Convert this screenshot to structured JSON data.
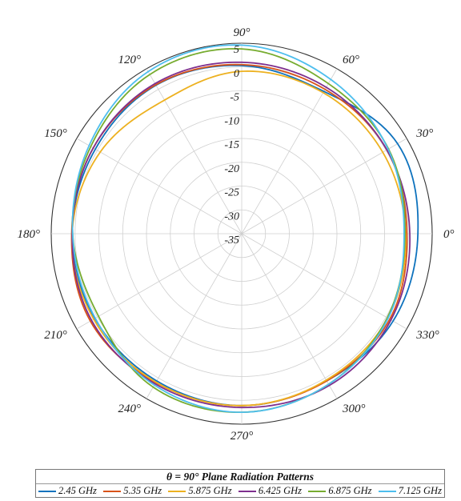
{
  "chart_data": {
    "type": "polar-line",
    "r_ticks": [
      5,
      0,
      -5,
      -10,
      -15,
      -20,
      -25,
      -30,
      -35
    ],
    "r_tick_labels": [
      "5",
      "0",
      "-5",
      "-10",
      "-15",
      "-20",
      "-25",
      "-30",
      "-35"
    ],
    "rlim": [
      -35,
      5
    ],
    "theta_ticks": [
      0,
      30,
      60,
      90,
      120,
      150,
      180,
      210,
      240,
      270,
      300,
      330
    ],
    "theta_tick_labels": [
      "0°",
      "30°",
      "60°",
      "90°",
      "120°",
      "150°",
      "180°",
      "210°",
      "240°",
      "270°",
      "300°",
      "330°"
    ],
    "grid": true,
    "legend_title": "θ = 90° Plane Radiation Patterns",
    "legend_position": "bottom",
    "angles_deg": [
      0,
      30,
      60,
      90,
      120,
      150,
      180,
      210,
      240,
      270,
      300,
      330
    ],
    "series": [
      {
        "name": "2.45 GHz",
        "color": "#0e72bd",
        "values": [
          2.0,
          2.8,
          -0.5,
          0.3,
          1.0,
          0.5,
          0.6,
          0.6,
          0.7,
          1.1,
          0.7,
          1.7
        ]
      },
      {
        "name": "5.35 GHz",
        "color": "#d95319",
        "values": [
          -0.3,
          0.2,
          0.0,
          0.5,
          1.1,
          1.0,
          0.7,
          1.7,
          1.1,
          1.1,
          0.7,
          0.9
        ]
      },
      {
        "name": "5.875 GHz",
        "color": "#edb120",
        "values": [
          -0.6,
          -0.8,
          -0.8,
          -0.9,
          -2.6,
          -0.7,
          0.6,
          0.9,
          1.0,
          1.1,
          0.5,
          0.4
        ]
      },
      {
        "name": "6.425 GHz",
        "color": "#7e2f8e",
        "values": [
          0.3,
          0.2,
          0.5,
          1.0,
          1.4,
          1.0,
          0.6,
          1.4,
          1.4,
          1.5,
          1.8,
          1.2
        ]
      },
      {
        "name": "6.875 GHz",
        "color": "#77ac30",
        "values": [
          -0.7,
          0.6,
          1.4,
          3.8,
          3.6,
          1.6,
          0.5,
          -0.3,
          2.2,
          2.5,
          1.5,
          0.3
        ]
      },
      {
        "name": "7.125 GHz",
        "color": "#4dbeee",
        "values": [
          -0.9,
          0.5,
          2.4,
          4.6,
          4.3,
          2.0,
          0.5,
          0.5,
          1.7,
          2.5,
          1.5,
          0.5
        ]
      }
    ]
  }
}
